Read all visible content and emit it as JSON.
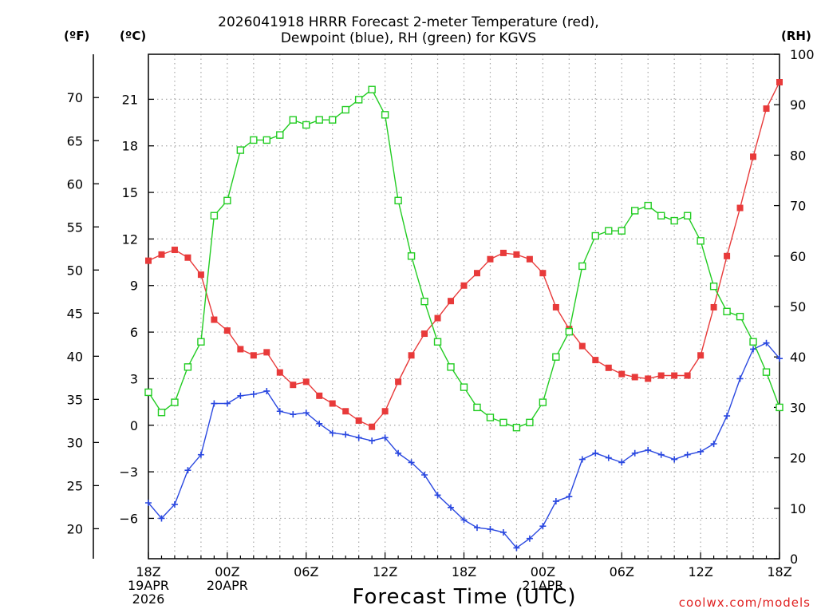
{
  "header": {
    "title_line1": "2026041918 HRRR Forecast 2-meter Temperature (red),",
    "title_line2": "Dewpoint (blue), RH (green) for KGVS"
  },
  "units": {
    "fahrenheit": "(ºF)",
    "celsius": "(ºC)",
    "rh": "(RH)"
  },
  "footer": {
    "xlabel": "Forecast Time (UTC)",
    "credit": "coolwx.com/models"
  },
  "colors": {
    "temperature": "#e83a3a",
    "dewpoint": "#2a48e0",
    "rh": "#22cc22",
    "grid": "#a8a8a8"
  },
  "chart_data": {
    "type": "line",
    "title": "2026041918 HRRR Forecast 2-meter Temperature (red), Dewpoint (blue), RH (green) for KGVS",
    "xlabel": "Forecast Time (UTC)",
    "x_hours": [
      0,
      1,
      2,
      3,
      4,
      5,
      6,
      7,
      8,
      9,
      10,
      11,
      12,
      13,
      14,
      15,
      16,
      17,
      18,
      19,
      20,
      21,
      22,
      23,
      24,
      25,
      26,
      27,
      28,
      29,
      30,
      31,
      32,
      33,
      34,
      35,
      36,
      37,
      38,
      39,
      40,
      41,
      42,
      43,
      44,
      45,
      46,
      47,
      48
    ],
    "x_ticks": [
      {
        "hour": 0,
        "lines": [
          "18Z",
          "19APR",
          "2026"
        ]
      },
      {
        "hour": 6,
        "lines": [
          "00Z",
          "20APR"
        ]
      },
      {
        "hour": 12,
        "lines": [
          "06Z"
        ]
      },
      {
        "hour": 18,
        "lines": [
          "12Z"
        ]
      },
      {
        "hour": 24,
        "lines": [
          "18Z"
        ]
      },
      {
        "hour": 30,
        "lines": [
          "00Z",
          "21APR"
        ]
      },
      {
        "hour": 36,
        "lines": [
          "06Z"
        ]
      },
      {
        "hour": 42,
        "lines": [
          "12Z"
        ]
      },
      {
        "hour": 48,
        "lines": [
          "18Z"
        ]
      }
    ],
    "y_celsius": {
      "range": [
        -8.6,
        23.9
      ],
      "ticks": [
        -6,
        -3,
        0,
        3,
        6,
        9,
        12,
        15,
        18,
        21
      ],
      "tick_labels": [
        "−6",
        "−3",
        "0",
        "3",
        "6",
        "9",
        "12",
        "15",
        "18",
        "21"
      ]
    },
    "y_fahrenheit": {
      "ticks": [
        20,
        25,
        30,
        35,
        40,
        45,
        50,
        55,
        60,
        65,
        70
      ],
      "tick_labels": [
        "20",
        "25",
        "30",
        "35",
        "40",
        "45",
        "50",
        "55",
        "60",
        "65",
        "70"
      ]
    },
    "y_rh": {
      "range": [
        0,
        100
      ],
      "ticks": [
        0,
        10,
        20,
        30,
        40,
        50,
        60,
        70,
        80,
        90,
        100
      ],
      "tick_labels": [
        "0",
        "10",
        "20",
        "30",
        "40",
        "50",
        "60",
        "70",
        "80",
        "90",
        "100"
      ]
    },
    "grid": true,
    "series": [
      {
        "name": "2-meter Temperature",
        "axis": "celsius",
        "marker": "filled-square",
        "values": [
          10.6,
          11.0,
          11.3,
          10.8,
          9.7,
          6.8,
          6.1,
          4.9,
          4.5,
          4.7,
          3.4,
          2.6,
          2.8,
          1.9,
          1.4,
          0.9,
          0.3,
          -0.1,
          0.9,
          2.8,
          4.5,
          5.9,
          6.9,
          8.0,
          9.0,
          9.8,
          10.7,
          11.1,
          11.0,
          10.7,
          9.8,
          7.6,
          6.2,
          5.1,
          4.2,
          3.7,
          3.3,
          3.1,
          3.0,
          3.2,
          3.2,
          3.2,
          4.5,
          7.6,
          10.9,
          14.0,
          17.3,
          20.4,
          22.1
        ]
      },
      {
        "name": "Dewpoint",
        "axis": "celsius",
        "marker": "plus",
        "values": [
          -5.0,
          -6.0,
          -5.1,
          -2.9,
          -1.9,
          1.4,
          1.4,
          1.9,
          2.0,
          2.2,
          0.9,
          0.7,
          0.8,
          0.1,
          -0.5,
          -0.6,
          -0.8,
          -1.0,
          -0.8,
          -1.8,
          -2.4,
          -3.2,
          -4.5,
          -5.3,
          -6.1,
          -6.6,
          -6.7,
          -6.9,
          -7.9,
          -7.3,
          -6.5,
          -4.9,
          -4.6,
          -2.2,
          -1.8,
          -2.1,
          -2.4,
          -1.8,
          -1.6,
          -1.9,
          -2.2,
          -1.9,
          -1.7,
          -1.2,
          0.6,
          3.0,
          4.9,
          5.3,
          4.3
        ]
      },
      {
        "name": "RH",
        "axis": "rh",
        "marker": "open-square",
        "values": [
          33,
          29,
          31,
          38,
          43,
          68,
          71,
          81,
          83,
          83,
          84,
          87,
          86,
          87,
          87,
          89,
          91,
          93,
          88,
          71,
          60,
          51,
          43,
          38,
          34,
          30,
          28,
          27,
          26,
          27,
          31,
          40,
          45,
          58,
          64,
          65,
          65,
          69,
          70,
          68,
          67,
          68,
          63,
          54,
          49,
          48,
          43,
          37,
          30
        ]
      }
    ]
  }
}
